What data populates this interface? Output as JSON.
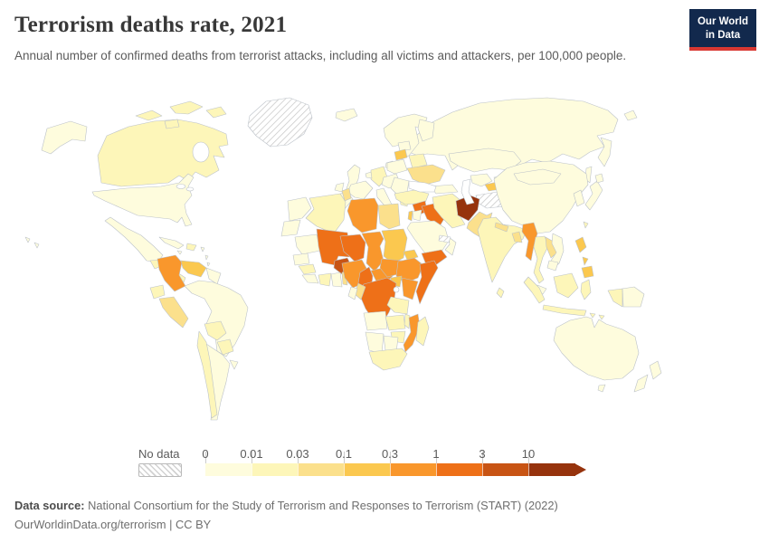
{
  "header": {
    "title": "Terrorism deaths rate, 2021",
    "subtitle": "Annual number of confirmed deaths from terrorist attacks, including all victims and attackers, per 100,000 people.",
    "logo": {
      "line1": "Our World",
      "line2": "in Data",
      "bg_color": "#12294d",
      "accent_color": "#d93832"
    }
  },
  "footer": {
    "datasource_label": "Data source:",
    "datasource_text": " National Consortium for the Study of Terrorism and Responses to Terrorism (START) (2022)",
    "link_line": "OurWorldinData.org/terrorism | CC BY"
  },
  "chart_data": {
    "type": "choropleth_map",
    "title": "Terrorism deaths rate, 2021",
    "unit": "annual confirmed deaths from terrorist attacks per 100,000 people",
    "year": 2021,
    "projection": "world",
    "legend": {
      "no_data_label": "No data",
      "tick_labels": [
        "0",
        "0.01",
        "0.03",
        "0.1",
        "0.3",
        "1",
        "3",
        "10"
      ],
      "bin_ranges": [
        "0-0.01",
        "0.01-0.03",
        "0.03-0.1",
        "0.1-0.3",
        "0.3-1",
        "1-3",
        "3-10",
        "10+"
      ],
      "palette": [
        "#FEFCDD",
        "#FDF6B9",
        "#FBE08C",
        "#FBC84F",
        "#F9972C",
        "#EE7018",
        "#C85414",
        "#96330D"
      ],
      "no_data_pattern": "diagonal-hatch",
      "border_color": "#bcc2c9",
      "ocean_color": "#ffffff"
    },
    "countries": [
      {
        "id": "russia",
        "name": "Russia",
        "bin": "0-0.01"
      },
      {
        "id": "canada",
        "name": "Canada",
        "bin": "0.01-0.03"
      },
      {
        "id": "usa",
        "name": "United States",
        "bin": "0-0.01"
      },
      {
        "id": "greenland",
        "name": "Greenland",
        "bin": "no-data"
      },
      {
        "id": "iceland",
        "name": "Iceland",
        "bin": "0-0.01"
      },
      {
        "id": "mexico",
        "name": "Mexico",
        "bin": "0-0.01"
      },
      {
        "id": "guatemala",
        "name": "Guatemala",
        "bin": "0.01-0.03"
      },
      {
        "id": "honduras",
        "name": "Honduras",
        "bin": "0.1-0.3"
      },
      {
        "id": "nicaragua",
        "name": "Nicaragua",
        "bin": "0.01-0.03"
      },
      {
        "id": "cuba",
        "name": "Cuba",
        "bin": "0-0.01"
      },
      {
        "id": "hispaniola",
        "name": "Haiti and Dominican Republic",
        "bin": "0.01-0.03"
      },
      {
        "id": "caribbean",
        "name": "Caribbean islands",
        "bin": "0-0.01"
      },
      {
        "id": "colombia",
        "name": "Colombia",
        "bin": "0.3-1"
      },
      {
        "id": "venezuela",
        "name": "Venezuela",
        "bin": "0.1-0.3"
      },
      {
        "id": "guyanas",
        "name": "Guyana and Suriname",
        "bin": "0-0.01"
      },
      {
        "id": "ecuador",
        "name": "Ecuador",
        "bin": "0.01-0.03"
      },
      {
        "id": "peru",
        "name": "Peru",
        "bin": "0.03-0.1"
      },
      {
        "id": "brazil",
        "name": "Brazil",
        "bin": "0-0.01"
      },
      {
        "id": "bolivia",
        "name": "Bolivia",
        "bin": "0.01-0.03"
      },
      {
        "id": "paraguay",
        "name": "Paraguay",
        "bin": "0.01-0.03"
      },
      {
        "id": "uruguay",
        "name": "Uruguay",
        "bin": "0-0.01"
      },
      {
        "id": "argentina",
        "name": "Argentina",
        "bin": "0-0.01"
      },
      {
        "id": "chile",
        "name": "Chile",
        "bin": "0.01-0.03"
      },
      {
        "id": "uk",
        "name": "United Kingdom",
        "bin": "0-0.01"
      },
      {
        "id": "ireland",
        "name": "Ireland",
        "bin": "0-0.01"
      },
      {
        "id": "norway-sweden",
        "name": "Norway and Sweden",
        "bin": "0-0.01"
      },
      {
        "id": "finland",
        "name": "Finland",
        "bin": "0-0.01"
      },
      {
        "id": "denmark",
        "name": "Denmark",
        "bin": "0-0.01"
      },
      {
        "id": "france",
        "name": "France",
        "bin": "0-0.01"
      },
      {
        "id": "iberia",
        "name": "Spain and Portugal",
        "bin": "0-0.01"
      },
      {
        "id": "germany",
        "name": "Germany",
        "bin": "0.01-0.03"
      },
      {
        "id": "benelux",
        "name": "Benelux",
        "bin": "0-0.01"
      },
      {
        "id": "central-europe",
        "name": "Central Europe",
        "bin": "0-0.01"
      },
      {
        "id": "italy",
        "name": "Italy",
        "bin": "0-0.01"
      },
      {
        "id": "poland",
        "name": "Poland",
        "bin": "0-0.01"
      },
      {
        "id": "estonia-latvia",
        "name": "Estonia and Latvia",
        "bin": "0-0.01"
      },
      {
        "id": "lithuania",
        "name": "Lithuania",
        "bin": "0.1-0.3"
      },
      {
        "id": "belarus",
        "name": "Belarus",
        "bin": "0.01-0.03"
      },
      {
        "id": "ukraine",
        "name": "Ukraine",
        "bin": "0.03-0.1"
      },
      {
        "id": "romania-balkans",
        "name": "Romania and Balkans",
        "bin": "0-0.01"
      },
      {
        "id": "greece",
        "name": "Greece",
        "bin": "0.01-0.03"
      },
      {
        "id": "kazakhstan",
        "name": "Kazakhstan",
        "bin": "0-0.01"
      },
      {
        "id": "uzbekistan",
        "name": "Uzbekistan",
        "bin": "0-0.01"
      },
      {
        "id": "kyrgyzstan",
        "name": "Kyrgyzstan",
        "bin": "0-0.01"
      },
      {
        "id": "turkmenistan",
        "name": "Turkmenistan",
        "bin": "no-data"
      },
      {
        "id": "tajikistan",
        "name": "Tajikistan",
        "bin": "0.1-0.3"
      },
      {
        "id": "caucasus",
        "name": "Caucasus",
        "bin": "0-0.01"
      },
      {
        "id": "turkey",
        "name": "Turkey",
        "bin": "0.01-0.03"
      },
      {
        "id": "syria",
        "name": "Syria",
        "bin": "1-3"
      },
      {
        "id": "iraq",
        "name": "Iraq",
        "bin": "1-3"
      },
      {
        "id": "israel",
        "name": "Israel",
        "bin": "0.1-0.3"
      },
      {
        "id": "jordan",
        "name": "Jordan",
        "bin": "0-0.01"
      },
      {
        "id": "saudi-arabia",
        "name": "Saudi Arabia",
        "bin": "0-0.01"
      },
      {
        "id": "yemen",
        "name": "Yemen",
        "bin": "1-3"
      },
      {
        "id": "oman",
        "name": "Oman",
        "bin": "0-0.01"
      },
      {
        "id": "uae",
        "name": "United Arab Emirates",
        "bin": "no-data"
      },
      {
        "id": "iran",
        "name": "Iran",
        "bin": "0.01-0.03"
      },
      {
        "id": "afghanistan",
        "name": "Afghanistan",
        "bin": "10+"
      },
      {
        "id": "pakistan",
        "name": "Pakistan",
        "bin": "0.03-0.1"
      },
      {
        "id": "india",
        "name": "India",
        "bin": "0.01-0.03"
      },
      {
        "id": "nepal",
        "name": "Nepal",
        "bin": "0.03-0.1"
      },
      {
        "id": "bangladesh",
        "name": "Bangladesh",
        "bin": "0.03-0.1"
      },
      {
        "id": "sri-lanka",
        "name": "Sri Lanka",
        "bin": "0.01-0.03"
      },
      {
        "id": "china",
        "name": "China",
        "bin": "0-0.01"
      },
      {
        "id": "mongolia",
        "name": "Mongolia",
        "bin": "0-0.01"
      },
      {
        "id": "korea",
        "name": "Korea",
        "bin": "0-0.01"
      },
      {
        "id": "japan",
        "name": "Japan",
        "bin": "0-0.01"
      },
      {
        "id": "taiwan",
        "name": "Taiwan",
        "bin": "0.01-0.03"
      },
      {
        "id": "myanmar",
        "name": "Myanmar",
        "bin": "0.3-1"
      },
      {
        "id": "thailand",
        "name": "Thailand",
        "bin": "0.01-0.03"
      },
      {
        "id": "laos",
        "name": "Laos",
        "bin": "0.03-0.1"
      },
      {
        "id": "vietnam",
        "name": "Vietnam",
        "bin": "0-0.01"
      },
      {
        "id": "cambodia",
        "name": "Cambodia",
        "bin": "0-0.01"
      },
      {
        "id": "malaysia",
        "name": "Malaysia",
        "bin": "0-0.01"
      },
      {
        "id": "indonesia",
        "name": "Indonesia",
        "bin": "0.01-0.03"
      },
      {
        "id": "philippines",
        "name": "Philippines",
        "bin": "0.1-0.3"
      },
      {
        "id": "png",
        "name": "Papua New Guinea",
        "bin": "0-0.01"
      },
      {
        "id": "australia",
        "name": "Australia",
        "bin": "0-0.01"
      },
      {
        "id": "new-zealand",
        "name": "New Zealand",
        "bin": "0-0.01"
      },
      {
        "id": "morocco",
        "name": "Morocco",
        "bin": "0-0.01"
      },
      {
        "id": "western-sahara",
        "name": "Western Sahara",
        "bin": "0-0.01"
      },
      {
        "id": "algeria",
        "name": "Algeria",
        "bin": "0.01-0.03"
      },
      {
        "id": "tunisia",
        "name": "Tunisia",
        "bin": "0.03-0.1"
      },
      {
        "id": "libya",
        "name": "Libya",
        "bin": "0.3-1"
      },
      {
        "id": "egypt",
        "name": "Egypt",
        "bin": "0.03-0.1"
      },
      {
        "id": "mauritania",
        "name": "Mauritania",
        "bin": "0-0.01"
      },
      {
        "id": "senegal",
        "name": "Senegal",
        "bin": "0-0.01"
      },
      {
        "id": "guinea",
        "name": "Guinea",
        "bin": "0.01-0.03"
      },
      {
        "id": "sierra-liberia",
        "name": "Sierra Leone and Liberia",
        "bin": "0-0.01"
      },
      {
        "id": "mali",
        "name": "Mali",
        "bin": "1-3"
      },
      {
        "id": "niger",
        "name": "Niger",
        "bin": "1-3"
      },
      {
        "id": "chad",
        "name": "Chad",
        "bin": "0.3-1"
      },
      {
        "id": "sudan",
        "name": "Sudan",
        "bin": "0.1-0.3"
      },
      {
        "id": "burkina-faso",
        "name": "Burkina Faso",
        "bin": "3-10"
      },
      {
        "id": "cote-divoire",
        "name": "Cote d'Ivoire",
        "bin": "0.01-0.03"
      },
      {
        "id": "ghana",
        "name": "Ghana",
        "bin": "0-0.01"
      },
      {
        "id": "togo",
        "name": "Togo",
        "bin": "0.03-0.1"
      },
      {
        "id": "benin",
        "name": "Benin",
        "bin": "0.1-0.3"
      },
      {
        "id": "nigeria",
        "name": "Nigeria",
        "bin": "0.3-1"
      },
      {
        "id": "cameroon",
        "name": "Cameroon",
        "bin": "1-3"
      },
      {
        "id": "car",
        "name": "Central African Republic",
        "bin": "0.3-1"
      },
      {
        "id": "south-sudan",
        "name": "South Sudan",
        "bin": "0.3-1"
      },
      {
        "id": "eritrea",
        "name": "Eritrea",
        "bin": "0.1-0.3"
      },
      {
        "id": "djibouti",
        "name": "Djibouti",
        "bin": "0.3-1"
      },
      {
        "id": "ethiopia",
        "name": "Ethiopia",
        "bin": "0.3-1"
      },
      {
        "id": "somalia",
        "name": "Somalia",
        "bin": "1-3"
      },
      {
        "id": "uganda",
        "name": "Uganda",
        "bin": "0.1-0.3"
      },
      {
        "id": "kenya",
        "name": "Kenya",
        "bin": "0.3-1"
      },
      {
        "id": "rwanda-burundi",
        "name": "Rwanda and Burundi",
        "bin": "0.1-0.3"
      },
      {
        "id": "drc",
        "name": "Democratic Republic of Congo",
        "bin": "1-3"
      },
      {
        "id": "congo",
        "name": "Congo",
        "bin": "0.03-0.1"
      },
      {
        "id": "gabon",
        "name": "Gabon",
        "bin": "0-0.01"
      },
      {
        "id": "tanzania",
        "name": "Tanzania",
        "bin": "0.01-0.03"
      },
      {
        "id": "angola",
        "name": "Angola",
        "bin": "0-0.01"
      },
      {
        "id": "zambia",
        "name": "Zambia",
        "bin": "0.01-0.03"
      },
      {
        "id": "malawi",
        "name": "Malawi",
        "bin": "0.01-0.03"
      },
      {
        "id": "mozambique",
        "name": "Mozambique",
        "bin": "0.3-1"
      },
      {
        "id": "zimbabwe",
        "name": "Zimbabwe",
        "bin": "0.01-0.03"
      },
      {
        "id": "namibia",
        "name": "Namibia",
        "bin": "0-0.01"
      },
      {
        "id": "botswana",
        "name": "Botswana",
        "bin": "0-0.01"
      },
      {
        "id": "south-africa",
        "name": "South Africa",
        "bin": "0.01-0.03"
      },
      {
        "id": "madagascar",
        "name": "Madagascar",
        "bin": "0.01-0.03"
      }
    ]
  }
}
